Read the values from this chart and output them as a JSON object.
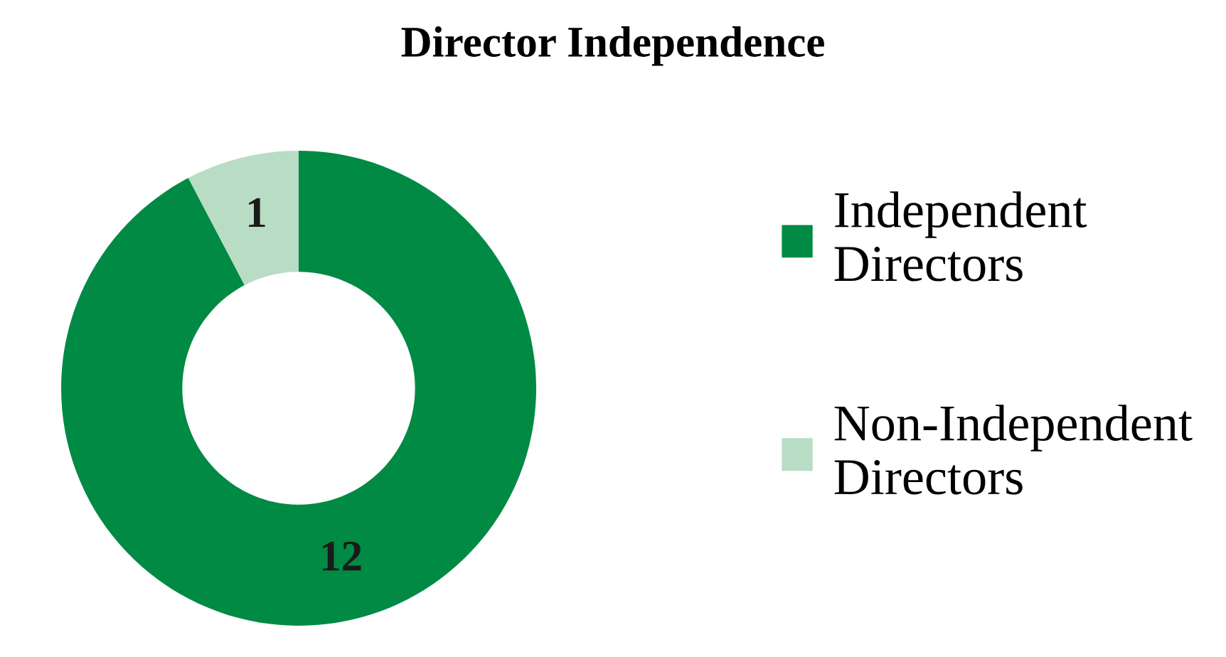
{
  "chart_data": {
    "type": "donut",
    "title": "Director Independence",
    "categories": [
      "Independent\nDirectors",
      "Non-Independent\nDirectors"
    ],
    "values": [
      12,
      1
    ],
    "colors": [
      "#008a44",
      "#b9dcc4"
    ],
    "data_labels": true,
    "legend": "right"
  }
}
